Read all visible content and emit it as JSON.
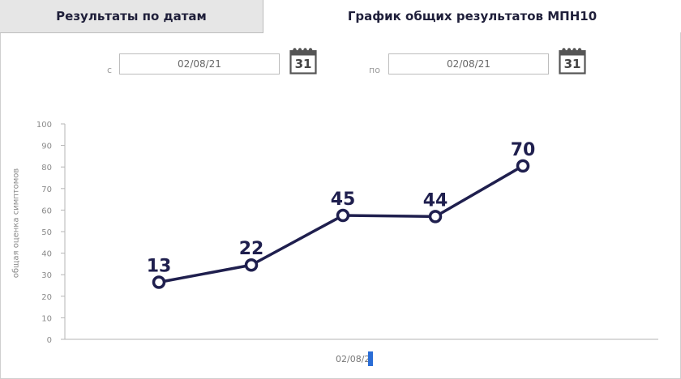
{
  "tabs": {
    "dates_label": "Результаты по датам",
    "chart_label": "График общих результатов МПН10"
  },
  "filters": {
    "from_prefix": "с",
    "to_prefix": "по",
    "from_value": "02/08/21",
    "to_value": "02/08/21",
    "calendar_day": "31"
  },
  "chart_data": {
    "type": "line",
    "x_label_visible": "02/08/2",
    "ylabel": "общая оценка симптомов",
    "ylim": [
      0,
      100
    ],
    "yticks": [
      0,
      10,
      20,
      30,
      40,
      50,
      60,
      70,
      80,
      90,
      100
    ],
    "points": [
      {
        "label": "13",
        "y": 26.5
      },
      {
        "label": "22",
        "y": 34.5
      },
      {
        "label": "45",
        "y": 57.5
      },
      {
        "label": "44",
        "y": 57
      },
      {
        "label": "70",
        "y": 80.5
      }
    ],
    "line_color": "#1f1f4e",
    "grid": false
  },
  "colors": {
    "tab_active_bg": "#e6e6e6",
    "text_dark": "#1f1f3a",
    "highlight": "#2a6dd6"
  }
}
